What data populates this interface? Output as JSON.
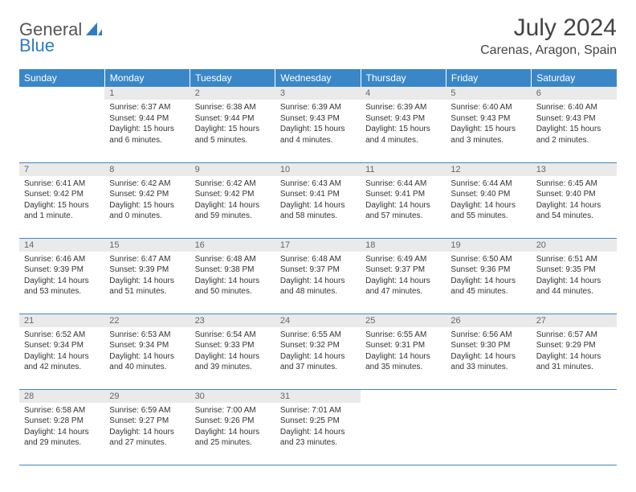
{
  "logo": {
    "text1": "General",
    "text2": "Blue"
  },
  "title": "July 2024",
  "location": "Carenas, Aragon, Spain",
  "colors": {
    "header_bg": "#3a87c8",
    "header_text": "#ffffff",
    "daynum_bg": "#eaeaea",
    "daynum_text": "#666666",
    "body_text": "#333333",
    "rule": "#3a87c8"
  },
  "weekdays": [
    "Sunday",
    "Monday",
    "Tuesday",
    "Wednesday",
    "Thursday",
    "Friday",
    "Saturday"
  ],
  "weeks": [
    [
      {
        "n": "",
        "sr": "",
        "ss": "",
        "dl": ""
      },
      {
        "n": "1",
        "sr": "Sunrise: 6:37 AM",
        "ss": "Sunset: 9:44 PM",
        "dl": "Daylight: 15 hours and 6 minutes."
      },
      {
        "n": "2",
        "sr": "Sunrise: 6:38 AM",
        "ss": "Sunset: 9:44 PM",
        "dl": "Daylight: 15 hours and 5 minutes."
      },
      {
        "n": "3",
        "sr": "Sunrise: 6:39 AM",
        "ss": "Sunset: 9:43 PM",
        "dl": "Daylight: 15 hours and 4 minutes."
      },
      {
        "n": "4",
        "sr": "Sunrise: 6:39 AM",
        "ss": "Sunset: 9:43 PM",
        "dl": "Daylight: 15 hours and 4 minutes."
      },
      {
        "n": "5",
        "sr": "Sunrise: 6:40 AM",
        "ss": "Sunset: 9:43 PM",
        "dl": "Daylight: 15 hours and 3 minutes."
      },
      {
        "n": "6",
        "sr": "Sunrise: 6:40 AM",
        "ss": "Sunset: 9:43 PM",
        "dl": "Daylight: 15 hours and 2 minutes."
      }
    ],
    [
      {
        "n": "7",
        "sr": "Sunrise: 6:41 AM",
        "ss": "Sunset: 9:42 PM",
        "dl": "Daylight: 15 hours and 1 minute."
      },
      {
        "n": "8",
        "sr": "Sunrise: 6:42 AM",
        "ss": "Sunset: 9:42 PM",
        "dl": "Daylight: 15 hours and 0 minutes."
      },
      {
        "n": "9",
        "sr": "Sunrise: 6:42 AM",
        "ss": "Sunset: 9:42 PM",
        "dl": "Daylight: 14 hours and 59 minutes."
      },
      {
        "n": "10",
        "sr": "Sunrise: 6:43 AM",
        "ss": "Sunset: 9:41 PM",
        "dl": "Daylight: 14 hours and 58 minutes."
      },
      {
        "n": "11",
        "sr": "Sunrise: 6:44 AM",
        "ss": "Sunset: 9:41 PM",
        "dl": "Daylight: 14 hours and 57 minutes."
      },
      {
        "n": "12",
        "sr": "Sunrise: 6:44 AM",
        "ss": "Sunset: 9:40 PM",
        "dl": "Daylight: 14 hours and 55 minutes."
      },
      {
        "n": "13",
        "sr": "Sunrise: 6:45 AM",
        "ss": "Sunset: 9:40 PM",
        "dl": "Daylight: 14 hours and 54 minutes."
      }
    ],
    [
      {
        "n": "14",
        "sr": "Sunrise: 6:46 AM",
        "ss": "Sunset: 9:39 PM",
        "dl": "Daylight: 14 hours and 53 minutes."
      },
      {
        "n": "15",
        "sr": "Sunrise: 6:47 AM",
        "ss": "Sunset: 9:39 PM",
        "dl": "Daylight: 14 hours and 51 minutes."
      },
      {
        "n": "16",
        "sr": "Sunrise: 6:48 AM",
        "ss": "Sunset: 9:38 PM",
        "dl": "Daylight: 14 hours and 50 minutes."
      },
      {
        "n": "17",
        "sr": "Sunrise: 6:48 AM",
        "ss": "Sunset: 9:37 PM",
        "dl": "Daylight: 14 hours and 48 minutes."
      },
      {
        "n": "18",
        "sr": "Sunrise: 6:49 AM",
        "ss": "Sunset: 9:37 PM",
        "dl": "Daylight: 14 hours and 47 minutes."
      },
      {
        "n": "19",
        "sr": "Sunrise: 6:50 AM",
        "ss": "Sunset: 9:36 PM",
        "dl": "Daylight: 14 hours and 45 minutes."
      },
      {
        "n": "20",
        "sr": "Sunrise: 6:51 AM",
        "ss": "Sunset: 9:35 PM",
        "dl": "Daylight: 14 hours and 44 minutes."
      }
    ],
    [
      {
        "n": "21",
        "sr": "Sunrise: 6:52 AM",
        "ss": "Sunset: 9:34 PM",
        "dl": "Daylight: 14 hours and 42 minutes."
      },
      {
        "n": "22",
        "sr": "Sunrise: 6:53 AM",
        "ss": "Sunset: 9:34 PM",
        "dl": "Daylight: 14 hours and 40 minutes."
      },
      {
        "n": "23",
        "sr": "Sunrise: 6:54 AM",
        "ss": "Sunset: 9:33 PM",
        "dl": "Daylight: 14 hours and 39 minutes."
      },
      {
        "n": "24",
        "sr": "Sunrise: 6:55 AM",
        "ss": "Sunset: 9:32 PM",
        "dl": "Daylight: 14 hours and 37 minutes."
      },
      {
        "n": "25",
        "sr": "Sunrise: 6:55 AM",
        "ss": "Sunset: 9:31 PM",
        "dl": "Daylight: 14 hours and 35 minutes."
      },
      {
        "n": "26",
        "sr": "Sunrise: 6:56 AM",
        "ss": "Sunset: 9:30 PM",
        "dl": "Daylight: 14 hours and 33 minutes."
      },
      {
        "n": "27",
        "sr": "Sunrise: 6:57 AM",
        "ss": "Sunset: 9:29 PM",
        "dl": "Daylight: 14 hours and 31 minutes."
      }
    ],
    [
      {
        "n": "28",
        "sr": "Sunrise: 6:58 AM",
        "ss": "Sunset: 9:28 PM",
        "dl": "Daylight: 14 hours and 29 minutes."
      },
      {
        "n": "29",
        "sr": "Sunrise: 6:59 AM",
        "ss": "Sunset: 9:27 PM",
        "dl": "Daylight: 14 hours and 27 minutes."
      },
      {
        "n": "30",
        "sr": "Sunrise: 7:00 AM",
        "ss": "Sunset: 9:26 PM",
        "dl": "Daylight: 14 hours and 25 minutes."
      },
      {
        "n": "31",
        "sr": "Sunrise: 7:01 AM",
        "ss": "Sunset: 9:25 PM",
        "dl": "Daylight: 14 hours and 23 minutes."
      },
      {
        "n": "",
        "sr": "",
        "ss": "",
        "dl": ""
      },
      {
        "n": "",
        "sr": "",
        "ss": "",
        "dl": ""
      },
      {
        "n": "",
        "sr": "",
        "ss": "",
        "dl": ""
      }
    ]
  ]
}
